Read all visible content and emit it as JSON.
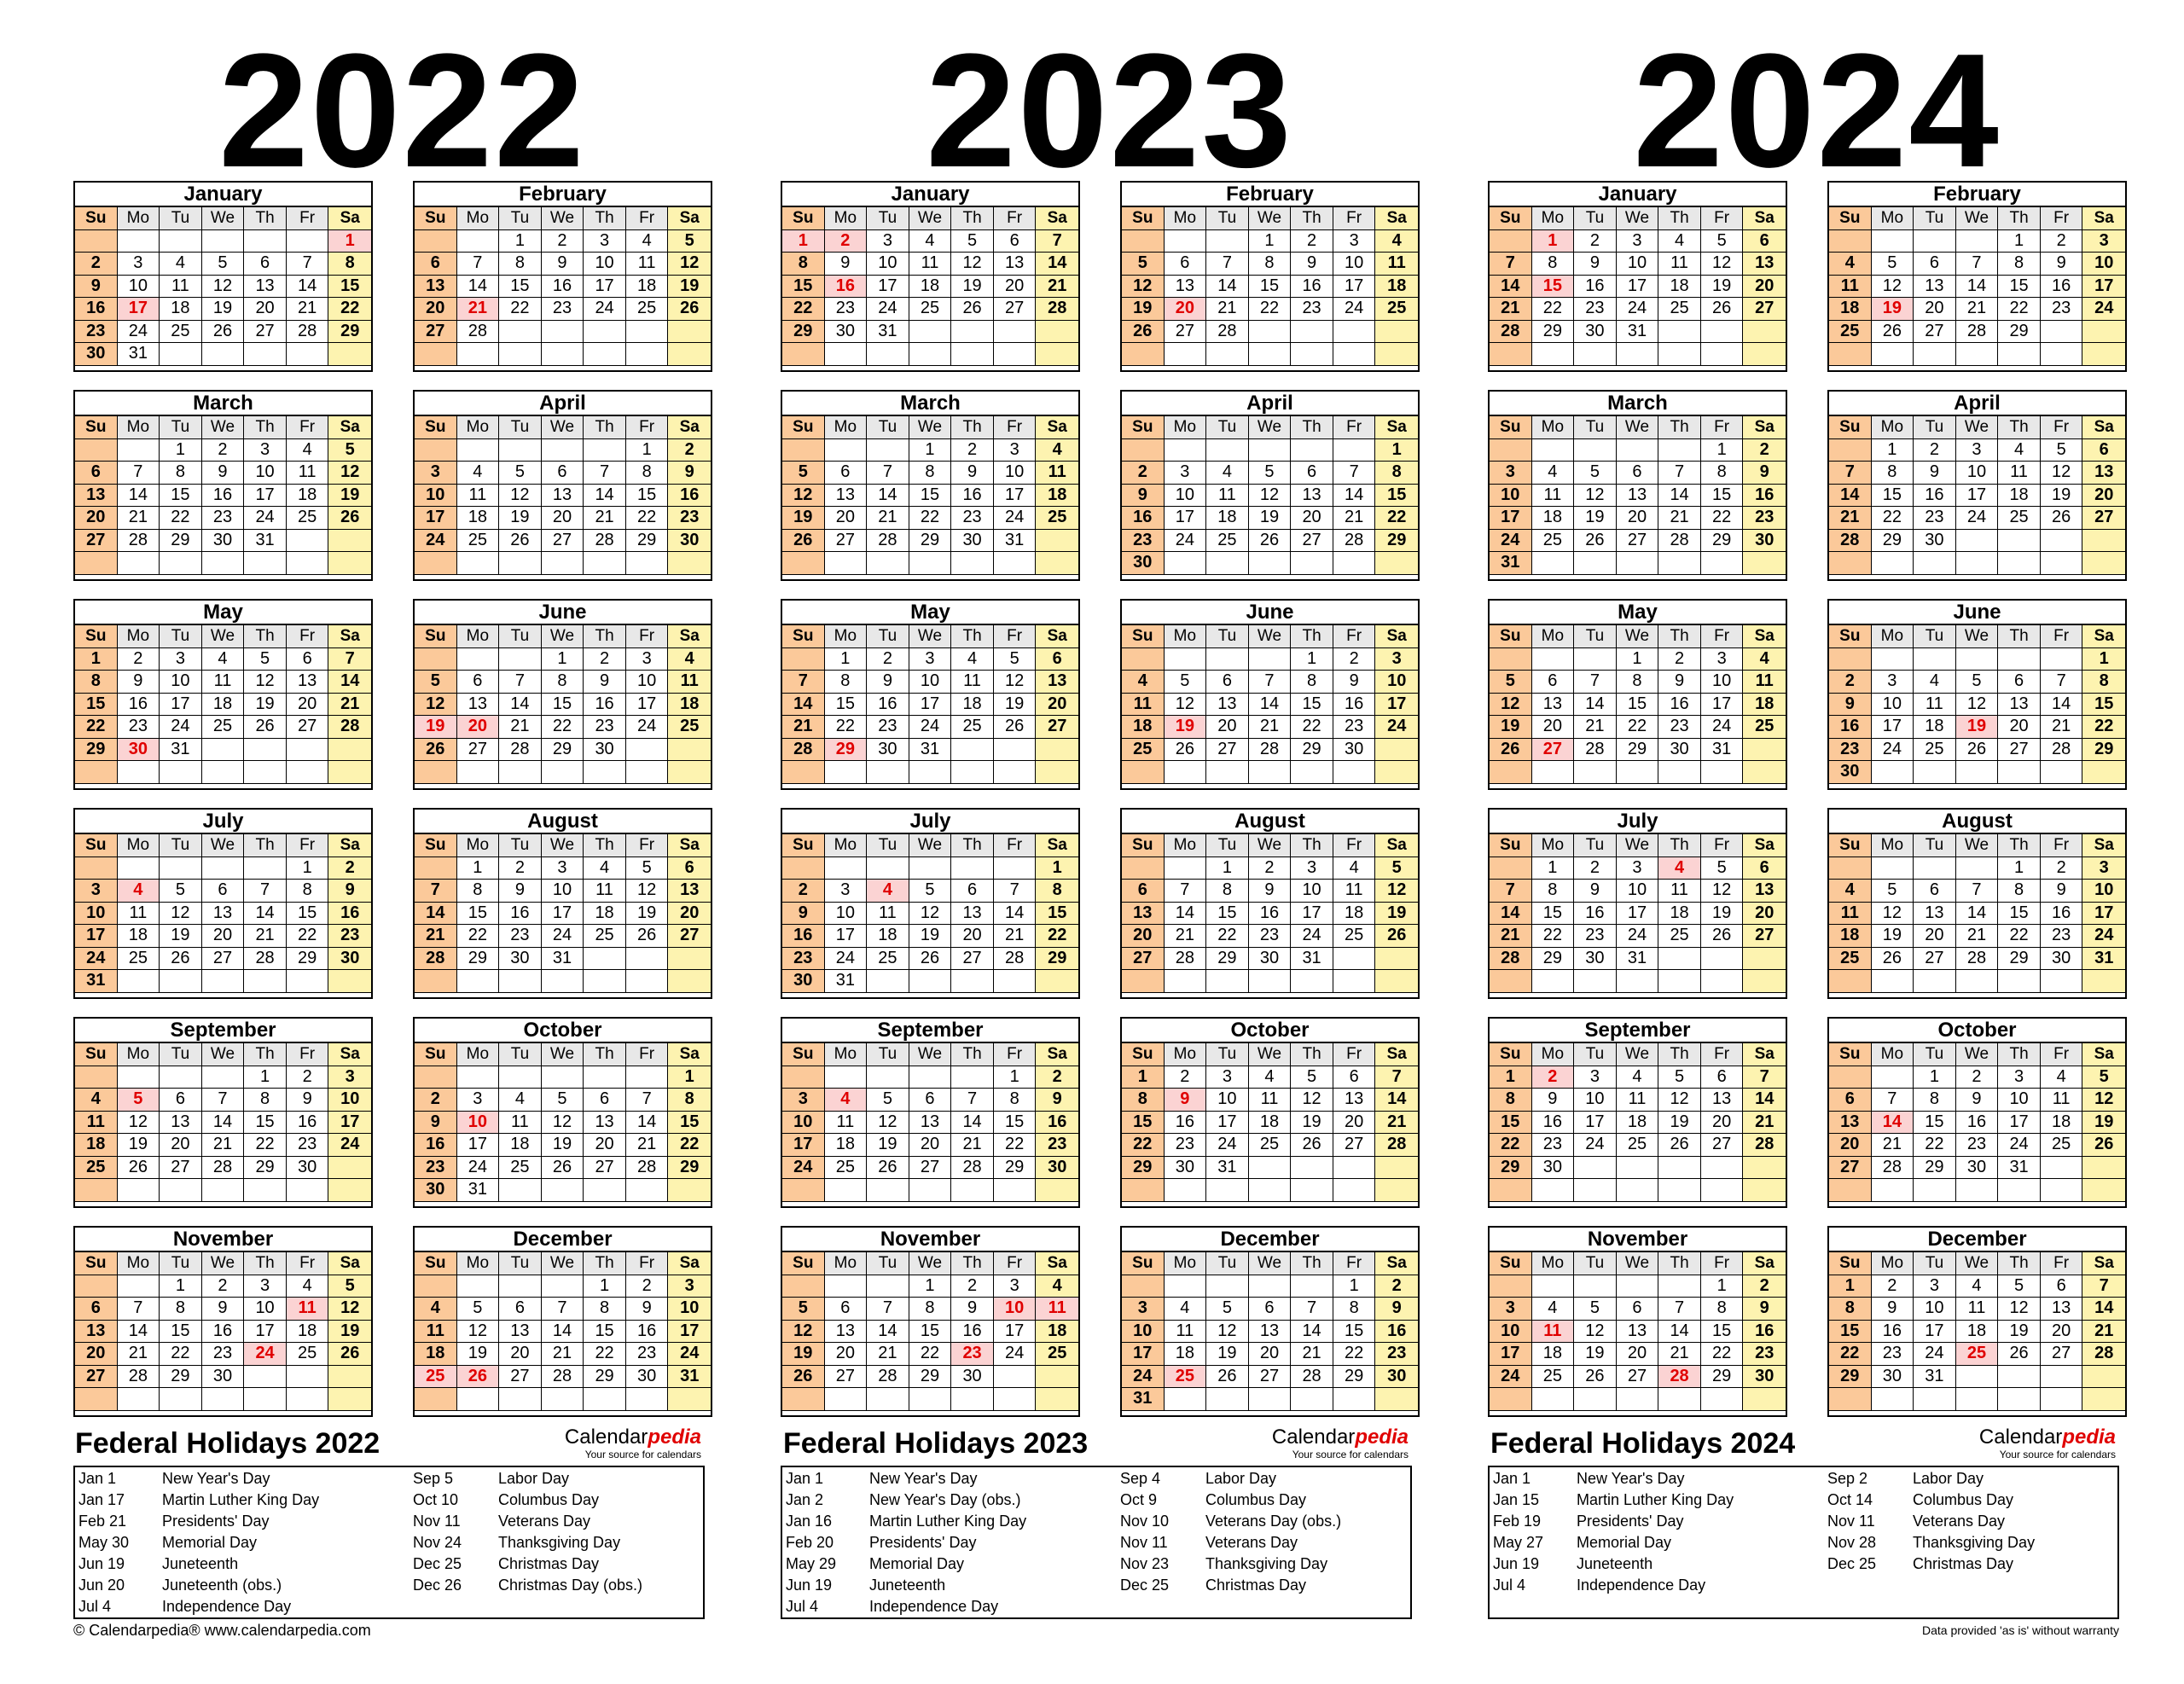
{
  "years": [
    "2022",
    "2023",
    "2024"
  ],
  "weekday_headers": [
    "Su",
    "Mo",
    "Tu",
    "We",
    "Th",
    "Fr",
    "Sa"
  ],
  "month_names": [
    "January",
    "February",
    "March",
    "April",
    "May",
    "June",
    "July",
    "August",
    "September",
    "October",
    "November",
    "December"
  ],
  "holidays": {
    "2022": {
      "title": "Federal Holidays 2022",
      "left": [
        {
          "date": "Jan 1",
          "name": "New Year's Day"
        },
        {
          "date": "Jan 17",
          "name": "Martin Luther King Day"
        },
        {
          "date": "Feb 21",
          "name": "Presidents' Day"
        },
        {
          "date": "May 30",
          "name": "Memorial Day"
        },
        {
          "date": "Jun 19",
          "name": "Juneteenth"
        },
        {
          "date": "Jun 20",
          "name": "Juneteenth (obs.)"
        },
        {
          "date": "Jul 4",
          "name": "Independence Day"
        }
      ],
      "right": [
        {
          "date": "Sep 5",
          "name": "Labor Day"
        },
        {
          "date": "Oct 10",
          "name": "Columbus Day"
        },
        {
          "date": "Nov 11",
          "name": "Veterans Day"
        },
        {
          "date": "Nov 24",
          "name": "Thanksgiving Day"
        },
        {
          "date": "Dec 25",
          "name": "Christmas Day"
        },
        {
          "date": "Dec 26",
          "name": "Christmas Day (obs.)"
        }
      ]
    },
    "2023": {
      "title": "Federal Holidays 2023",
      "left": [
        {
          "date": "Jan 1",
          "name": "New Year's Day"
        },
        {
          "date": "Jan 2",
          "name": "New Year's Day (obs.)"
        },
        {
          "date": "Jan 16",
          "name": "Martin Luther King Day"
        },
        {
          "date": "Feb 20",
          "name": "Presidents' Day"
        },
        {
          "date": "May 29",
          "name": "Memorial Day"
        },
        {
          "date": "Jun 19",
          "name": "Juneteenth"
        },
        {
          "date": "Jul 4",
          "name": "Independence Day"
        }
      ],
      "right": [
        {
          "date": "Sep 4",
          "name": "Labor Day"
        },
        {
          "date": "Oct 9",
          "name": "Columbus Day"
        },
        {
          "date": "Nov 10",
          "name": "Veterans Day (obs.)"
        },
        {
          "date": "Nov 11",
          "name": "Veterans Day"
        },
        {
          "date": "Nov 23",
          "name": "Thanksgiving Day"
        },
        {
          "date": "Dec 25",
          "name": "Christmas Day"
        }
      ]
    },
    "2024": {
      "title": "Federal Holidays 2024",
      "left": [
        {
          "date": "Jan 1",
          "name": "New Year's Day"
        },
        {
          "date": "Jan 15",
          "name": "Martin Luther King Day"
        },
        {
          "date": "Feb 19",
          "name": "Presidents' Day"
        },
        {
          "date": "May 27",
          "name": "Memorial Day"
        },
        {
          "date": "Jun 19",
          "name": "Juneteenth"
        },
        {
          "date": "Jul 4",
          "name": "Independence Day"
        }
      ],
      "right": [
        {
          "date": "Sep 2",
          "name": "Labor Day"
        },
        {
          "date": "Oct 14",
          "name": "Columbus Day"
        },
        {
          "date": "Nov 11",
          "name": "Veterans Day"
        },
        {
          "date": "Nov 28",
          "name": "Thanksgiving Day"
        },
        {
          "date": "Dec 25",
          "name": "Christmas Day"
        }
      ]
    }
  },
  "brand": {
    "name_plain": "Calendar",
    "name_accent": "pedia",
    "tagline": "Your source for calendars"
  },
  "footer": {
    "left": "© Calendarpedia®   www.calendarpedia.com",
    "right": "Data provided 'as is' without warranty"
  },
  "colors": {
    "sunday": "#fbc99a",
    "saturday": "#fdf3b0",
    "header": "#e8e8e8",
    "holiday_bg": "#fbd3d3",
    "holiday_text": "#e00000"
  }
}
